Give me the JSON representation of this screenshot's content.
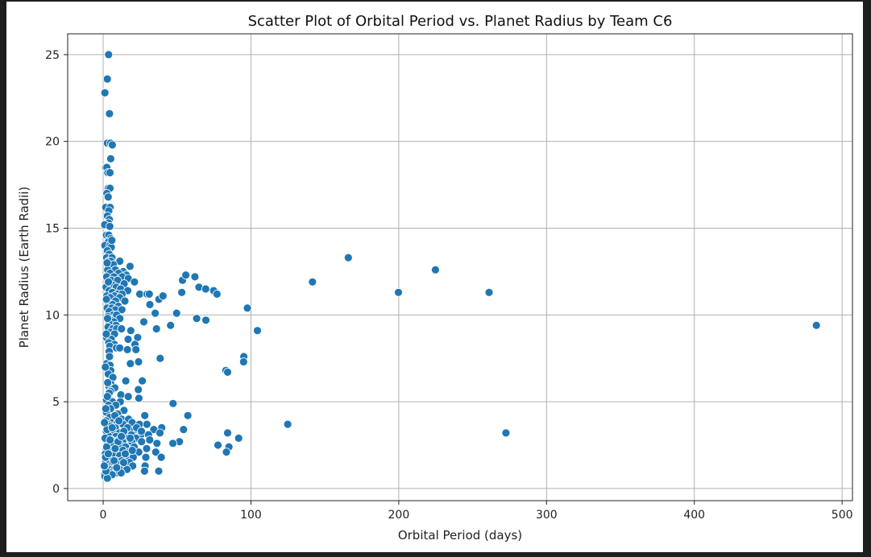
{
  "chart_data": {
    "type": "scatter",
    "title": "Scatter Plot of Orbital Period vs. Planet Radius by Team C6",
    "xlabel": "Orbital Period (days)",
    "ylabel": "Planet Radius (Earth Radii)",
    "xlim": [
      -24,
      507
    ],
    "ylim": [
      -0.7,
      26.2
    ],
    "xticks": [
      0,
      100,
      200,
      300,
      400,
      500
    ],
    "yticks": [
      0,
      5,
      10,
      15,
      20,
      25
    ],
    "grid": true,
    "marker_color": "#1f77b4",
    "marker_edge_color": "#ffffff",
    "points": [
      [
        3.7,
        25.0
      ],
      [
        2.8,
        23.6
      ],
      [
        1.2,
        22.8
      ],
      [
        4.3,
        21.6
      ],
      [
        2.9,
        19.9
      ],
      [
        5.0,
        19.9
      ],
      [
        6.2,
        19.8
      ],
      [
        5.1,
        19.0
      ],
      [
        1.7,
        18.5
      ],
      [
        2.5,
        18.5
      ],
      [
        3.2,
        18.2
      ],
      [
        4.6,
        18.2
      ],
      [
        3.5,
        17.3
      ],
      [
        4.6,
        17.3
      ],
      [
        2.5,
        17.0
      ],
      [
        3.4,
        16.8
      ],
      [
        1.8,
        16.2
      ],
      [
        4.7,
        16.2
      ],
      [
        3.8,
        16.0
      ],
      [
        2.9,
        15.7
      ],
      [
        4.2,
        15.5
      ],
      [
        3.6,
        15.3
      ],
      [
        1.1,
        15.2
      ],
      [
        4.5,
        15.1
      ],
      [
        2.2,
        14.6
      ],
      [
        3.8,
        14.6
      ],
      [
        5.1,
        14.4
      ],
      [
        3.4,
        14.2
      ],
      [
        1.2,
        14.0
      ],
      [
        4.6,
        14.0
      ],
      [
        5.5,
        13.9
      ],
      [
        2.9,
        13.7
      ],
      [
        4.1,
        13.5
      ],
      [
        2.4,
        13.3
      ],
      [
        6.0,
        13.3
      ],
      [
        3.7,
        13.1
      ],
      [
        5.2,
        13.1
      ],
      [
        11.3,
        13.1
      ],
      [
        6.9,
        12.9
      ],
      [
        18.2,
        12.8
      ],
      [
        3.1,
        12.6
      ],
      [
        8.2,
        12.6
      ],
      [
        13.5,
        12.5
      ],
      [
        4.7,
        12.4
      ],
      [
        10.5,
        12.4
      ],
      [
        15.7,
        12.3
      ],
      [
        2.4,
        12.2
      ],
      [
        7.3,
        12.2
      ],
      [
        12.9,
        12.2
      ],
      [
        17.0,
        12.1
      ],
      [
        5.6,
        12.0
      ],
      [
        9.8,
        12.0
      ],
      [
        21.2,
        11.9
      ],
      [
        3.1,
        11.8
      ],
      [
        14.2,
        11.8
      ],
      [
        6.8,
        11.7
      ],
      [
        2.0,
        11.6
      ],
      [
        8.9,
        11.6
      ],
      [
        11.8,
        11.5
      ],
      [
        4.1,
        11.4
      ],
      [
        16.6,
        11.4
      ],
      [
        6.2,
        11.3
      ],
      [
        9.7,
        11.2
      ],
      [
        12.8,
        11.2
      ],
      [
        2.5,
        11.1
      ],
      [
        7.6,
        11.1
      ],
      [
        24.8,
        11.2
      ],
      [
        29.7,
        11.2
      ],
      [
        31.2,
        11.2
      ],
      [
        11.2,
        11.0
      ],
      [
        4.8,
        11.0
      ],
      [
        8.4,
        10.8
      ],
      [
        14.7,
        10.8
      ],
      [
        3.4,
        10.7
      ],
      [
        6.5,
        10.6
      ],
      [
        31.6,
        10.6
      ],
      [
        10.3,
        10.5
      ],
      [
        2.7,
        10.4
      ],
      [
        5.9,
        10.4
      ],
      [
        8.3,
        10.3
      ],
      [
        12.7,
        10.3
      ],
      [
        4.1,
        10.2
      ],
      [
        35.2,
        10.1
      ],
      [
        6.8,
        10.0
      ],
      [
        9.1,
        10.0
      ],
      [
        3.2,
        9.9
      ],
      [
        11.3,
        9.8
      ],
      [
        5.2,
        9.7
      ],
      [
        7.3,
        9.6
      ],
      [
        27.5,
        9.6
      ],
      [
        4.1,
        9.5
      ],
      [
        8.7,
        9.4
      ],
      [
        45.6,
        9.4
      ],
      [
        3.3,
        9.3
      ],
      [
        6.4,
        9.2
      ],
      [
        9.1,
        9.2
      ],
      [
        12.4,
        9.2
      ],
      [
        18.7,
        9.1
      ],
      [
        36.1,
        9.2
      ],
      [
        4.7,
        9.0
      ],
      [
        7.7,
        8.9
      ],
      [
        23.4,
        8.7
      ],
      [
        2.3,
        8.7
      ],
      [
        5.5,
        8.6
      ],
      [
        16.9,
        8.6
      ],
      [
        3.8,
        8.4
      ],
      [
        7.6,
        8.3
      ],
      [
        21.5,
        8.3
      ],
      [
        4.5,
        8.2
      ],
      [
        9.0,
        8.1
      ],
      [
        11.2,
        8.1
      ],
      [
        16.4,
        8.0
      ],
      [
        4.1,
        7.9
      ],
      [
        22.2,
        8.0
      ],
      [
        38.6,
        7.5
      ],
      [
        2.4,
        7.2
      ],
      [
        18.4,
        7.2
      ],
      [
        24.0,
        7.3
      ],
      [
        4.6,
        7.1
      ],
      [
        5.1,
        6.8
      ],
      [
        3.5,
        6.6
      ],
      [
        6.6,
        6.4
      ],
      [
        15.3,
        6.2
      ],
      [
        26.5,
        6.2
      ],
      [
        5.4,
        6.0
      ],
      [
        3.8,
        5.9
      ],
      [
        7.9,
        5.8
      ],
      [
        5.0,
        5.6
      ],
      [
        23.8,
        5.7
      ],
      [
        4.1,
        5.5
      ],
      [
        12.0,
        5.4
      ],
      [
        17.0,
        5.3
      ],
      [
        24.2,
        5.2
      ],
      [
        2.2,
        5.1
      ],
      [
        6.3,
        5.0
      ],
      [
        11.6,
        5.0
      ],
      [
        47.3,
        4.9
      ],
      [
        3.6,
        4.8
      ],
      [
        8.6,
        4.8
      ],
      [
        5.0,
        4.6
      ],
      [
        14.1,
        4.5
      ],
      [
        2.1,
        4.4
      ],
      [
        9.8,
        4.3
      ],
      [
        57.3,
        4.2
      ],
      [
        28.2,
        4.2
      ],
      [
        4.4,
        4.1
      ],
      [
        12.5,
        4.0
      ],
      [
        17.2,
        4.0
      ],
      [
        2.0,
        3.9
      ],
      [
        6.3,
        3.8
      ],
      [
        9.6,
        3.8
      ],
      [
        19.6,
        3.8
      ],
      [
        3.3,
        3.7
      ],
      [
        13.4,
        3.7
      ],
      [
        24.6,
        3.7
      ],
      [
        29.6,
        3.7
      ],
      [
        39.6,
        3.5
      ],
      [
        5.0,
        3.6
      ],
      [
        8.3,
        3.5
      ],
      [
        16.5,
        3.5
      ],
      [
        21.3,
        3.4
      ],
      [
        34.3,
        3.4
      ],
      [
        54.4,
        3.4
      ],
      [
        124.9,
        3.7
      ],
      [
        272.5,
        3.2
      ],
      [
        84.2,
        3.2
      ],
      [
        2.1,
        3.3
      ],
      [
        6.9,
        3.2
      ],
      [
        11.1,
        3.2
      ],
      [
        14.9,
        3.1
      ],
      [
        19.1,
        3.1
      ],
      [
        25.5,
        3.1
      ],
      [
        30.7,
        3.1
      ],
      [
        38.4,
        3.2
      ],
      [
        91.7,
        2.9
      ],
      [
        3.9,
        3.0
      ],
      [
        8.6,
        3.0
      ],
      [
        16.1,
        2.9
      ],
      [
        22.1,
        2.9
      ],
      [
        1.7,
        2.8
      ],
      [
        5.5,
        2.8
      ],
      [
        10.7,
        2.8
      ],
      [
        13.2,
        2.7
      ],
      [
        19.4,
        2.7
      ],
      [
        26.0,
        2.7
      ],
      [
        36.4,
        2.6
      ],
      [
        51.6,
        2.7
      ],
      [
        47.2,
        2.6
      ],
      [
        77.7,
        2.5
      ],
      [
        85.1,
        2.4
      ],
      [
        3.0,
        2.6
      ],
      [
        7.2,
        2.5
      ],
      [
        11.5,
        2.5
      ],
      [
        15.2,
        2.4
      ],
      [
        21.0,
        2.4
      ],
      [
        29.4,
        2.3
      ],
      [
        2.0,
        2.3
      ],
      [
        5.1,
        2.2
      ],
      [
        9.0,
        2.2
      ],
      [
        13.4,
        2.2
      ],
      [
        17.6,
        2.1
      ],
      [
        24.1,
        2.1
      ],
      [
        35.6,
        2.1
      ],
      [
        83.4,
        2.1
      ],
      [
        1.5,
        2.0
      ],
      [
        3.8,
        1.9
      ],
      [
        6.9,
        1.9
      ],
      [
        11.2,
        1.9
      ],
      [
        15.5,
        1.8
      ],
      [
        20.3,
        1.8
      ],
      [
        28.9,
        1.8
      ],
      [
        39.3,
        1.8
      ],
      [
        2.6,
        1.7
      ],
      [
        5.0,
        1.6
      ],
      [
        8.5,
        1.6
      ],
      [
        12.7,
        1.6
      ],
      [
        17.9,
        1.5
      ],
      [
        1.7,
        1.5
      ],
      [
        4.1,
        1.4
      ],
      [
        6.3,
        1.4
      ],
      [
        9.6,
        1.4
      ],
      [
        13.6,
        1.3
      ],
      [
        20.0,
        1.3
      ],
      [
        28.4,
        1.3
      ],
      [
        1.1,
        1.2
      ],
      [
        3.0,
        1.2
      ],
      [
        5.5,
        1.1
      ],
      [
        7.7,
        1.1
      ],
      [
        11.2,
        1.1
      ],
      [
        16.1,
        1.1
      ],
      [
        37.6,
        1.0
      ],
      [
        28.0,
        1.0
      ],
      [
        1.4,
        1.0
      ],
      [
        3.4,
        0.9
      ],
      [
        4.9,
        0.9
      ],
      [
        8.7,
        0.9
      ],
      [
        12.1,
        0.9
      ],
      [
        0.9,
        0.8
      ],
      [
        2.3,
        0.8
      ],
      [
        4.0,
        0.7
      ],
      [
        6.1,
        0.8
      ],
      [
        1.2,
        0.7
      ],
      [
        2.8,
        0.6
      ],
      [
        1.9,
        1.0
      ],
      [
        0.8,
        1.3
      ],
      [
        1.6,
        1.8
      ],
      [
        2.4,
        2.4
      ],
      [
        1.3,
        2.9
      ],
      [
        2.6,
        3.4
      ],
      [
        0.9,
        3.8
      ],
      [
        1.8,
        4.6
      ],
      [
        2.9,
        5.3
      ],
      [
        3.1,
        6.1
      ],
      [
        1.5,
        7.0
      ],
      [
        4.3,
        7.6
      ],
      [
        2.1,
        8.9
      ],
      [
        3.0,
        9.8
      ],
      [
        2.2,
        10.9
      ],
      [
        3.6,
        11.9
      ],
      [
        2.7,
        13.0
      ],
      [
        5.9,
        14.3
      ],
      [
        7.4,
        1.6
      ],
      [
        10.1,
        2.7
      ],
      [
        14.0,
        3.3
      ],
      [
        18.3,
        2.9
      ],
      [
        22.6,
        3.5
      ],
      [
        7.9,
        4.2
      ],
      [
        12.3,
        3.0
      ],
      [
        9.2,
        1.2
      ],
      [
        4.7,
        2.8
      ],
      [
        6.1,
        3.5
      ],
      [
        3.5,
        2.0
      ],
      [
        15.0,
        2.0
      ],
      [
        10.7,
        3.9
      ],
      [
        8.1,
        2.3
      ],
      [
        13.9,
        1.5
      ],
      [
        25.9,
        3.3
      ],
      [
        19.7,
        2.2
      ],
      [
        31.5,
        2.8
      ],
      [
        53.7,
        12.0
      ],
      [
        55.9,
        12.3
      ],
      [
        62.1,
        12.2
      ],
      [
        64.8,
        11.6
      ],
      [
        69.4,
        11.5
      ],
      [
        74.8,
        11.4
      ],
      [
        77.0,
        11.2
      ],
      [
        53.2,
        11.3
      ],
      [
        37.7,
        10.9
      ],
      [
        40.5,
        11.1
      ],
      [
        49.7,
        10.1
      ],
      [
        63.3,
        9.8
      ],
      [
        69.5,
        9.7
      ],
      [
        97.6,
        10.4
      ],
      [
        104.4,
        9.1
      ],
      [
        95.2,
        7.6
      ],
      [
        95.0,
        7.3
      ],
      [
        83.0,
        6.8
      ],
      [
        84.2,
        6.7
      ],
      [
        141.6,
        11.9
      ],
      [
        165.9,
        13.3
      ],
      [
        199.8,
        11.3
      ],
      [
        224.8,
        12.6
      ],
      [
        261.1,
        11.3
      ],
      [
        482.6,
        9.4
      ]
    ]
  }
}
